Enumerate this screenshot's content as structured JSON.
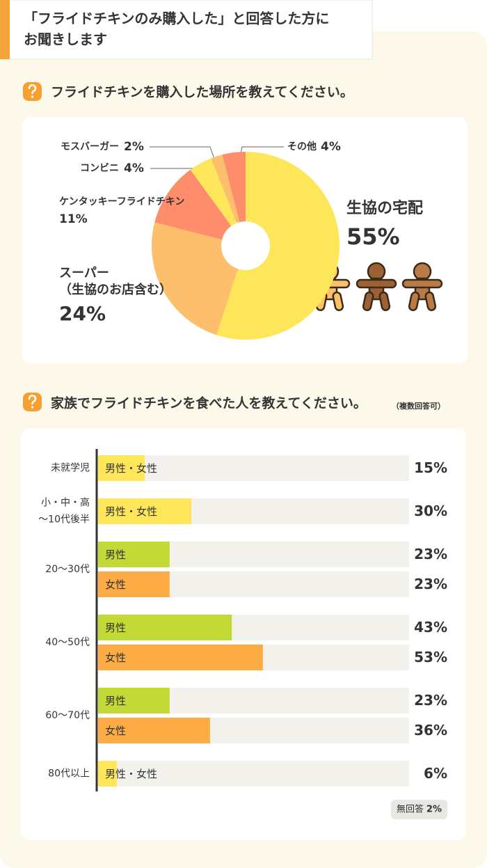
{
  "header": {
    "title_lines": [
      "「フライドチキンのみ購入した」と回答した方に",
      "お聞きします"
    ]
  },
  "chart_data": [
    {
      "type": "pie",
      "donut": true,
      "title": "フライドチキンを購入した場所を教えてください。",
      "categories": [
        [
          "生協の宅配"
        ],
        [
          "スーパー",
          "（生協のお店含む）"
        ],
        [
          "ケンタッキーフライドチキン"
        ],
        [
          "コンビニ"
        ],
        [
          "モスバーガー"
        ],
        [
          "その他"
        ]
      ],
      "values": [
        55,
        24,
        11,
        4,
        2,
        4
      ],
      "value_labels": [
        "55%",
        "24%",
        "11%",
        "4%",
        "2%",
        "4%"
      ],
      "colors": [
        "#fde65a",
        "#fdbf6b",
        "#fd8d6b",
        "#fde65a",
        "#fdbf6b",
        "#fd8d6b"
      ],
      "label_colors": [
        "#e6bf1f",
        "#f2a02e",
        "#f5845a",
        "#e6bf1f",
        "#f2a02e",
        "#f5845a"
      ]
    },
    {
      "type": "bar",
      "orientation": "horizontal",
      "title": "家族でフライドチキンを食べた人を教えてください。",
      "note": "（複数回答可）",
      "xlim": [
        0,
        100
      ],
      "groups": [
        {
          "label": [
            "未就学児"
          ],
          "bars": [
            {
              "name": "男性・女性",
              "color": "#fde65a",
              "value": 15,
              "value_label": "15%"
            }
          ]
        },
        {
          "label": [
            "小・中・高",
            "〜10代後半"
          ],
          "bars": [
            {
              "name": "男性・女性",
              "color": "#fde65a",
              "value": 30,
              "value_label": "30%"
            }
          ]
        },
        {
          "label": [
            "20〜30代"
          ],
          "bars": [
            {
              "name": "男性",
              "color": "#c3d935",
              "value": 23,
              "value_label": "23%"
            },
            {
              "name": "女性",
              "color": "#fcab45",
              "value": 23,
              "value_label": "23%"
            }
          ]
        },
        {
          "label": [
            "40〜50代"
          ],
          "bars": [
            {
              "name": "男性",
              "color": "#c3d935",
              "value": 43,
              "value_label": "43%"
            },
            {
              "name": "女性",
              "color": "#fcab45",
              "value": 53,
              "value_label": "53%"
            }
          ]
        },
        {
          "label": [
            "60〜70代"
          ],
          "bars": [
            {
              "name": "男性",
              "color": "#c3d935",
              "value": 23,
              "value_label": "23%"
            },
            {
              "name": "女性",
              "color": "#fcab45",
              "value": 36,
              "value_label": "36%"
            }
          ]
        },
        {
          "label": [
            "80代以上"
          ],
          "bars": [
            {
              "name": "男性・女性",
              "color": "#fde65a",
              "value": 6,
              "value_label": "6%"
            }
          ]
        }
      ],
      "no_answer": {
        "label": "無回答",
        "value": 2,
        "value_label": "2%",
        "color": "#9c6fd6"
      }
    }
  ]
}
